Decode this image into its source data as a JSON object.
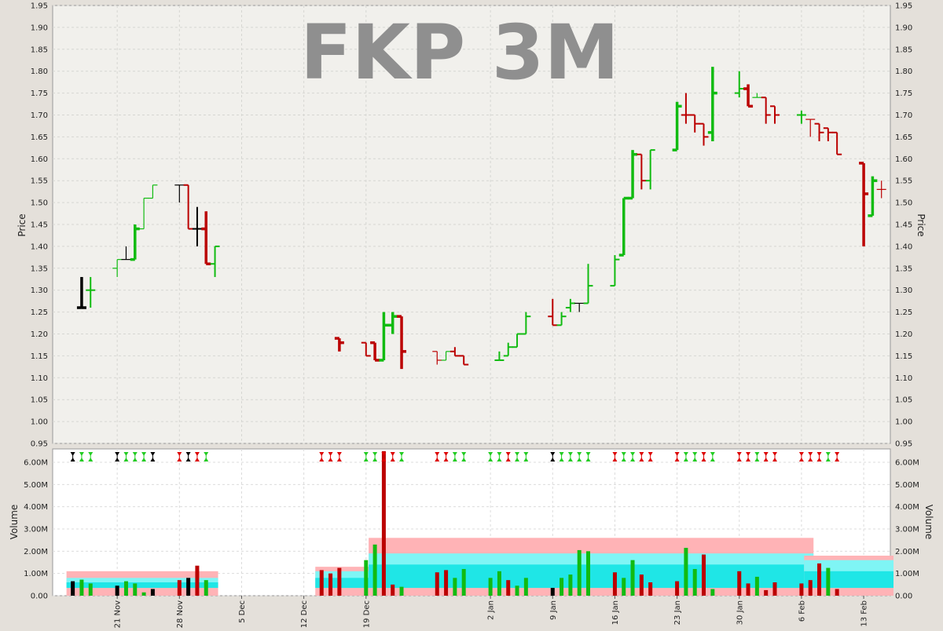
{
  "chart_data": [
    {
      "type": "ohlc",
      "title": "FKP 3M",
      "ylabel": "Price",
      "ylim": [
        0.95,
        1.95
      ],
      "yticks": [
        "0.95",
        "1.00",
        "1.05",
        "1.10",
        "1.15",
        "1.20",
        "1.25",
        "1.30",
        "1.35",
        "1.40",
        "1.45",
        "1.50",
        "1.55",
        "1.60",
        "1.65",
        "1.70",
        "1.75",
        "1.80",
        "1.85",
        "1.90",
        "1.95"
      ],
      "grid": true,
      "colors": {
        "up": "#11bb11",
        "down": "#bb0000",
        "flat": "#000000"
      },
      "bars": [
        {
          "d": "2022-11-17",
          "o": 1.26,
          "h": 1.33,
          "l": 1.26,
          "c": 1.26,
          "color": "flat",
          "w": "bold"
        },
        {
          "d": "2022-11-18",
          "o": 1.3,
          "h": 1.33,
          "l": 1.26,
          "c": 1.3,
          "color": "up",
          "w": "normal"
        },
        {
          "d": "2022-11-21",
          "o": 1.35,
          "h": 1.37,
          "l": 1.33,
          "c": 1.37,
          "color": "up",
          "w": "thin"
        },
        {
          "d": "2022-11-22",
          "o": 1.37,
          "h": 1.4,
          "l": 1.37,
          "c": 1.37,
          "color": "flat",
          "w": "thin"
        },
        {
          "d": "2022-11-23",
          "o": 1.37,
          "h": 1.45,
          "l": 1.37,
          "c": 1.44,
          "color": "up",
          "w": "bold"
        },
        {
          "d": "2022-11-24",
          "o": 1.44,
          "h": 1.51,
          "l": 1.44,
          "c": 1.51,
          "color": "up",
          "w": "thin"
        },
        {
          "d": "2022-11-25",
          "o": 1.51,
          "h": 1.54,
          "l": 1.51,
          "c": 1.54,
          "color": "up",
          "w": "thin"
        },
        {
          "d": "2022-11-28",
          "o": 1.54,
          "h": 1.54,
          "l": 1.5,
          "c": 1.54,
          "color": "flat",
          "w": "thin"
        },
        {
          "d": "2022-11-29",
          "o": 1.54,
          "h": 1.54,
          "l": 1.44,
          "c": 1.44,
          "color": "down",
          "w": "normal"
        },
        {
          "d": "2022-11-30",
          "o": 1.44,
          "h": 1.49,
          "l": 1.4,
          "c": 1.44,
          "color": "flat",
          "w": "normal"
        },
        {
          "d": "2022-12-01",
          "o": 1.44,
          "h": 1.48,
          "l": 1.36,
          "c": 1.36,
          "color": "down",
          "w": "bold"
        },
        {
          "d": "2022-12-02",
          "o": 1.36,
          "h": 1.4,
          "l": 1.33,
          "c": 1.4,
          "color": "up",
          "w": "normal"
        },
        {
          "d": "2022-12-16",
          "o": 1.19,
          "h": 1.19,
          "l": 1.16,
          "c": 1.18,
          "color": "down",
          "w": "bold"
        },
        {
          "d": "2022-12-19",
          "o": 1.18,
          "h": 1.18,
          "l": 1.15,
          "c": 1.15,
          "color": "down",
          "w": "normal"
        },
        {
          "d": "2022-12-20",
          "o": 1.18,
          "h": 1.18,
          "l": 1.14,
          "c": 1.14,
          "color": "down",
          "w": "bold"
        },
        {
          "d": "2022-12-21",
          "o": 1.14,
          "h": 1.25,
          "l": 1.14,
          "c": 1.22,
          "color": "up",
          "w": "bold"
        },
        {
          "d": "2022-12-22",
          "o": 1.22,
          "h": 1.25,
          "l": 1.2,
          "c": 1.24,
          "color": "up",
          "w": "bold"
        },
        {
          "d": "2022-12-23",
          "o": 1.24,
          "h": 1.24,
          "l": 1.12,
          "c": 1.16,
          "color": "down",
          "w": "bold"
        },
        {
          "d": "2022-12-27",
          "o": 1.16,
          "h": 1.16,
          "l": 1.13,
          "c": 1.14,
          "color": "down",
          "w": "thin"
        },
        {
          "d": "2022-12-28",
          "o": 1.14,
          "h": 1.16,
          "l": 1.14,
          "c": 1.16,
          "color": "up",
          "w": "thin"
        },
        {
          "d": "2022-12-29",
          "o": 1.16,
          "h": 1.17,
          "l": 1.15,
          "c": 1.15,
          "color": "down",
          "w": "normal"
        },
        {
          "d": "2022-12-30",
          "o": 1.15,
          "h": 1.15,
          "l": 1.13,
          "c": 1.13,
          "color": "down",
          "w": "normal"
        },
        {
          "d": "2023-01-03",
          "o": 1.14,
          "h": 1.16,
          "l": 1.14,
          "c": 1.14,
          "color": "up",
          "w": "normal"
        },
        {
          "d": "2023-01-04",
          "o": 1.15,
          "h": 1.18,
          "l": 1.15,
          "c": 1.17,
          "color": "up",
          "w": "normal"
        },
        {
          "d": "2023-01-05",
          "o": 1.17,
          "h": 1.2,
          "l": 1.17,
          "c": 1.2,
          "color": "up",
          "w": "normal"
        },
        {
          "d": "2023-01-06",
          "o": 1.2,
          "h": 1.25,
          "l": 1.2,
          "c": 1.24,
          "color": "up",
          "w": "normal"
        },
        {
          "d": "2023-01-09",
          "o": 1.24,
          "h": 1.28,
          "l": 1.22,
          "c": 1.22,
          "color": "down",
          "w": "normal"
        },
        {
          "d": "2023-01-10",
          "o": 1.22,
          "h": 1.25,
          "l": 1.22,
          "c": 1.24,
          "color": "up",
          "w": "normal"
        },
        {
          "d": "2023-01-11",
          "o": 1.26,
          "h": 1.28,
          "l": 1.25,
          "c": 1.27,
          "color": "up",
          "w": "normal"
        },
        {
          "d": "2023-01-12",
          "o": 1.27,
          "h": 1.27,
          "l": 1.25,
          "c": 1.27,
          "color": "flat",
          "w": "thin"
        },
        {
          "d": "2023-01-13",
          "o": 1.27,
          "h": 1.36,
          "l": 1.27,
          "c": 1.31,
          "color": "up",
          "w": "normal"
        },
        {
          "d": "2023-01-16",
          "o": 1.31,
          "h": 1.38,
          "l": 1.31,
          "c": 1.37,
          "color": "up",
          "w": "normal"
        },
        {
          "d": "2023-01-17",
          "o": 1.38,
          "h": 1.51,
          "l": 1.38,
          "c": 1.51,
          "color": "up",
          "w": "bold"
        },
        {
          "d": "2023-01-18",
          "o": 1.51,
          "h": 1.62,
          "l": 1.51,
          "c": 1.61,
          "color": "up",
          "w": "bold"
        },
        {
          "d": "2023-01-19",
          "o": 1.61,
          "h": 1.61,
          "l": 1.53,
          "c": 1.55,
          "color": "down",
          "w": "normal"
        },
        {
          "d": "2023-01-20",
          "o": 1.55,
          "h": 1.62,
          "l": 1.53,
          "c": 1.62,
          "color": "up",
          "w": "normal"
        },
        {
          "d": "2023-01-23",
          "o": 1.62,
          "h": 1.73,
          "l": 1.62,
          "c": 1.72,
          "color": "up",
          "w": "bold"
        },
        {
          "d": "2023-01-24",
          "o": 1.7,
          "h": 1.75,
          "l": 1.68,
          "c": 1.7,
          "color": "down",
          "w": "normal"
        },
        {
          "d": "2023-01-25",
          "o": 1.7,
          "h": 1.7,
          "l": 1.66,
          "c": 1.68,
          "color": "down",
          "w": "normal"
        },
        {
          "d": "2023-01-26",
          "o": 1.68,
          "h": 1.68,
          "l": 1.63,
          "c": 1.65,
          "color": "down",
          "w": "normal"
        },
        {
          "d": "2023-01-27",
          "o": 1.66,
          "h": 1.81,
          "l": 1.64,
          "c": 1.75,
          "color": "up",
          "w": "bold"
        },
        {
          "d": "2023-01-30",
          "o": 1.75,
          "h": 1.8,
          "l": 1.74,
          "c": 1.76,
          "color": "up",
          "w": "normal"
        },
        {
          "d": "2023-01-31",
          "o": 1.76,
          "h": 1.77,
          "l": 1.72,
          "c": 1.72,
          "color": "down",
          "w": "bold"
        },
        {
          "d": "2023-02-01",
          "o": 1.74,
          "h": 1.75,
          "l": 1.74,
          "c": 1.74,
          "color": "up",
          "w": "thin"
        },
        {
          "d": "2023-02-02",
          "o": 1.74,
          "h": 1.74,
          "l": 1.68,
          "c": 1.7,
          "color": "down",
          "w": "normal"
        },
        {
          "d": "2023-02-03",
          "o": 1.72,
          "h": 1.72,
          "l": 1.68,
          "c": 1.7,
          "color": "down",
          "w": "normal"
        },
        {
          "d": "2023-02-06",
          "o": 1.7,
          "h": 1.71,
          "l": 1.68,
          "c": 1.7,
          "color": "up",
          "w": "normal"
        },
        {
          "d": "2023-02-07",
          "o": 1.69,
          "h": 1.69,
          "l": 1.65,
          "c": 1.69,
          "color": "down",
          "w": "thin"
        },
        {
          "d": "2023-02-08",
          "o": 1.68,
          "h": 1.68,
          "l": 1.64,
          "c": 1.66,
          "color": "down",
          "w": "normal"
        },
        {
          "d": "2023-02-09",
          "o": 1.67,
          "h": 1.67,
          "l": 1.64,
          "c": 1.66,
          "color": "down",
          "w": "normal"
        },
        {
          "d": "2023-02-10",
          "o": 1.66,
          "h": 1.66,
          "l": 1.61,
          "c": 1.61,
          "color": "down",
          "w": "normal"
        },
        {
          "d": "2023-02-13",
          "o": 1.59,
          "h": 1.59,
          "l": 1.4,
          "c": 1.52,
          "color": "down",
          "w": "bold"
        },
        {
          "d": "2023-02-14",
          "o": 1.47,
          "h": 1.56,
          "l": 1.47,
          "c": 1.55,
          "color": "up",
          "w": "bold"
        },
        {
          "d": "2023-02-15",
          "o": 1.53,
          "h": 1.55,
          "l": 1.51,
          "c": 1.53,
          "color": "down",
          "w": "thin"
        }
      ]
    },
    {
      "type": "bar",
      "ylabel": "Volume",
      "ylim": [
        0,
        6.6
      ],
      "yticks": [
        "0.00",
        "1.00M",
        "2.00M",
        "3.00M",
        "4.00M",
        "5.00M",
        "6.00M"
      ],
      "xticks": [
        {
          "d": "2022-11-21",
          "label": "21 Nov"
        },
        {
          "d": "2022-11-28",
          "label": "28 Nov"
        },
        {
          "d": "2022-12-05",
          "label": "5 Dec"
        },
        {
          "d": "2022-12-12",
          "label": "12 Dec"
        },
        {
          "d": "2022-12-19",
          "label": "19 Dec"
        },
        {
          "d": "2023-01-02",
          "label": "2 Jan"
        },
        {
          "d": "2023-01-09",
          "label": "9 Jan"
        },
        {
          "d": "2023-01-16",
          "label": "16 Jan"
        },
        {
          "d": "2023-01-23",
          "label": "23 Jan"
        },
        {
          "d": "2023-01-30",
          "label": "30 Jan"
        },
        {
          "d": "2023-02-06",
          "label": "6 Feb"
        },
        {
          "d": "2023-02-13",
          "label": "13 Feb"
        }
      ],
      "volumes": [
        {
          "d": "2022-11-16",
          "v": 0.65,
          "color": "flat"
        },
        {
          "d": "2022-11-17",
          "v": 0.72,
          "color": "up"
        },
        {
          "d": "2022-11-18",
          "v": 0.55,
          "color": "up"
        },
        {
          "d": "2022-11-21",
          "v": 0.45,
          "color": "flat"
        },
        {
          "d": "2022-11-22",
          "v": 0.65,
          "color": "up"
        },
        {
          "d": "2022-11-23",
          "v": 0.55,
          "color": "up"
        },
        {
          "d": "2022-11-24",
          "v": 0.15,
          "color": "up"
        },
        {
          "d": "2022-11-25",
          "v": 0.3,
          "color": "flat"
        },
        {
          "d": "2022-11-28",
          "v": 0.7,
          "color": "down"
        },
        {
          "d": "2022-11-29",
          "v": 0.8,
          "color": "flat"
        },
        {
          "d": "2022-11-30",
          "v": 1.35,
          "color": "down"
        },
        {
          "d": "2022-12-01",
          "v": 0.7,
          "color": "up"
        },
        {
          "d": "2022-12-14",
          "v": 1.15,
          "color": "down"
        },
        {
          "d": "2022-12-15",
          "v": 1.0,
          "color": "down"
        },
        {
          "d": "2022-12-16",
          "v": 1.25,
          "color": "down"
        },
        {
          "d": "2022-12-19",
          "v": 1.6,
          "color": "up"
        },
        {
          "d": "2022-12-20",
          "v": 2.3,
          "color": "up"
        },
        {
          "d": "2022-12-21",
          "v": 6.5,
          "color": "down"
        },
        {
          "d": "2022-12-22",
          "v": 0.5,
          "color": "down"
        },
        {
          "d": "2022-12-23",
          "v": 0.4,
          "color": "up"
        },
        {
          "d": "2022-12-27",
          "v": 1.05,
          "color": "down"
        },
        {
          "d": "2022-12-28",
          "v": 1.15,
          "color": "down"
        },
        {
          "d": "2022-12-29",
          "v": 0.8,
          "color": "up"
        },
        {
          "d": "2022-12-30",
          "v": 1.2,
          "color": "up"
        },
        {
          "d": "2023-01-02",
          "v": 0.8,
          "color": "up"
        },
        {
          "d": "2023-01-03",
          "v": 1.1,
          "color": "up"
        },
        {
          "d": "2023-01-04",
          "v": 0.7,
          "color": "down"
        },
        {
          "d": "2023-01-05",
          "v": 0.45,
          "color": "up"
        },
        {
          "d": "2023-01-06",
          "v": 0.8,
          "color": "up"
        },
        {
          "d": "2023-01-09",
          "v": 0.35,
          "color": "flat"
        },
        {
          "d": "2023-01-10",
          "v": 0.8,
          "color": "up"
        },
        {
          "d": "2023-01-11",
          "v": 0.95,
          "color": "up"
        },
        {
          "d": "2023-01-12",
          "v": 2.05,
          "color": "up"
        },
        {
          "d": "2023-01-13",
          "v": 2.0,
          "color": "up"
        },
        {
          "d": "2023-01-16",
          "v": 1.05,
          "color": "down"
        },
        {
          "d": "2023-01-17",
          "v": 0.8,
          "color": "up"
        },
        {
          "d": "2023-01-18",
          "v": 1.6,
          "color": "up"
        },
        {
          "d": "2023-01-19",
          "v": 0.95,
          "color": "down"
        },
        {
          "d": "2023-01-20",
          "v": 0.6,
          "color": "down"
        },
        {
          "d": "2023-01-23",
          "v": 0.65,
          "color": "down"
        },
        {
          "d": "2023-01-24",
          "v": 2.15,
          "color": "up"
        },
        {
          "d": "2023-01-25",
          "v": 1.2,
          "color": "up"
        },
        {
          "d": "2023-01-26",
          "v": 1.85,
          "color": "down"
        },
        {
          "d": "2023-01-27",
          "v": 0.3,
          "color": "up"
        },
        {
          "d": "2023-01-30",
          "v": 1.1,
          "color": "down"
        },
        {
          "d": "2023-01-31",
          "v": 0.55,
          "color": "down"
        },
        {
          "d": "2023-02-01",
          "v": 0.85,
          "color": "up"
        },
        {
          "d": "2023-02-02",
          "v": 0.25,
          "color": "down"
        },
        {
          "d": "2023-02-03",
          "v": 0.6,
          "color": "down"
        },
        {
          "d": "2023-02-06",
          "v": 0.55,
          "color": "down"
        },
        {
          "d": "2023-02-07",
          "v": 0.7,
          "color": "down"
        },
        {
          "d": "2023-02-08",
          "v": 1.45,
          "color": "down"
        },
        {
          "d": "2023-02-09",
          "v": 1.25,
          "color": "up"
        },
        {
          "d": "2023-02-10",
          "v": 0.3,
          "color": "down"
        }
      ],
      "bands": [
        {
          "from": "2022-11-16",
          "to": "2022-12-02",
          "pink": 1.1,
          "cyan": 0.8,
          "cyanDark": 0.6
        },
        {
          "from": "2022-12-14",
          "to": "2022-12-20",
          "pink": 1.3,
          "cyan": 1.1,
          "cyanDark": 0.8
        },
        {
          "from": "2022-12-20",
          "to": "2023-02-07",
          "pink": 2.6,
          "cyan": 1.9,
          "cyanDark": 1.4
        },
        {
          "from": "2023-02-07",
          "to": "2023-02-16",
          "pink": 1.8,
          "cyan": 1.6,
          "cyanDark": 1.1
        }
      ],
      "signal_colors": {
        "bullish": "#22cc22",
        "bearish": "#dd0000",
        "neutral": "#000000"
      }
    }
  ]
}
